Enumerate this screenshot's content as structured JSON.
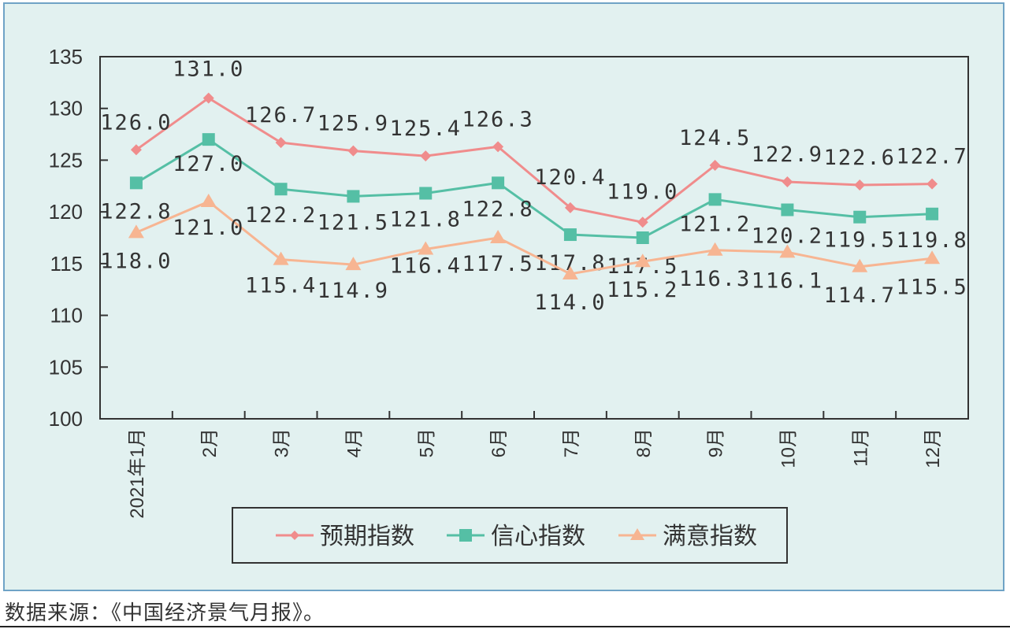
{
  "chart_data": {
    "type": "line",
    "title": "",
    "xlabel": "",
    "ylabel": "",
    "ylim": [
      100,
      135
    ],
    "yticks": [
      100,
      105,
      110,
      115,
      120,
      125,
      130,
      135
    ],
    "grid": false,
    "legend_position": "bottom",
    "categories": [
      "2021年1月",
      "2月",
      "3月",
      "4月",
      "5月",
      "6月",
      "7月",
      "8月",
      "9月",
      "10月",
      "11月",
      "12月"
    ],
    "series": [
      {
        "name": "预期指数",
        "color": "#f08c8c",
        "marker": "diamond",
        "values": [
          126.0,
          131.0,
          126.7,
          125.9,
          125.4,
          126.3,
          120.4,
          119.0,
          124.5,
          122.9,
          122.6,
          122.7
        ]
      },
      {
        "name": "信心指数",
        "color": "#55bfa5",
        "marker": "square",
        "values": [
          122.8,
          127.0,
          122.2,
          121.5,
          121.8,
          122.8,
          117.8,
          117.5,
          121.2,
          120.2,
          119.5,
          119.8
        ]
      },
      {
        "name": "满意指数",
        "color": "#f7b592",
        "marker": "triangle",
        "values": [
          118.0,
          121.0,
          115.4,
          114.9,
          116.4,
          117.5,
          114.0,
          115.2,
          116.3,
          116.1,
          114.7,
          115.5
        ]
      }
    ]
  },
  "source_note": "数据来源：《中国经济景气月报》。"
}
